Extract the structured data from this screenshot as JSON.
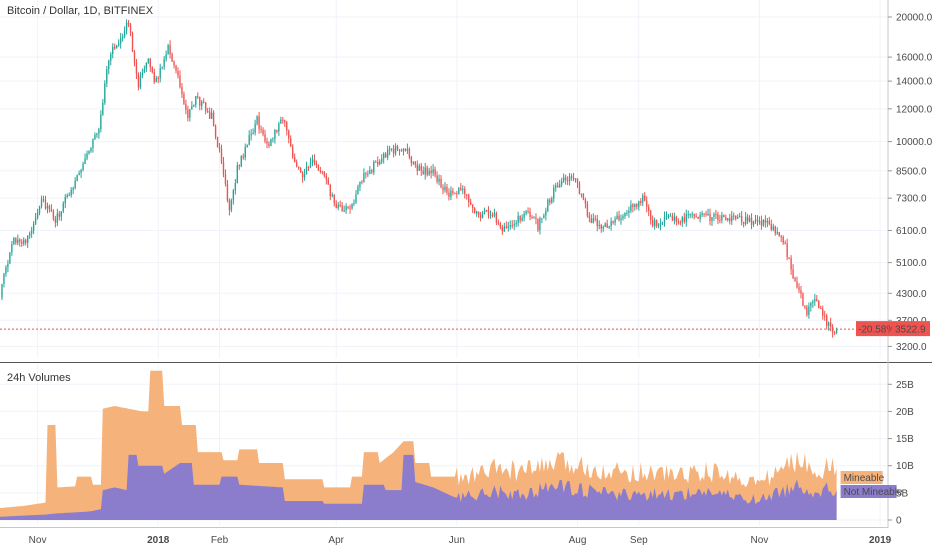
{
  "chart_data": [
    {
      "type": "candlestick",
      "title": "Bitcoin / Dollar, 1D, BITFINEX",
      "y_scale": "log",
      "ylim": [
        3000,
        21500
      ],
      "y_ticks": [
        3200,
        3700,
        4300,
        5100,
        6100,
        7300,
        8500,
        10000,
        12000,
        14000,
        16000,
        20000
      ],
      "y_tick_labels": [
        "3200.0",
        "3700.0",
        "4300.0",
        "5100.0",
        "6100.0",
        "7300.0",
        "8500.0",
        "10000.0",
        "12000.0",
        "14000.0",
        "16000.0",
        "20000.0"
      ],
      "x_range": [
        "2017-10-13",
        "2019-01-05"
      ],
      "x_ticks": [
        {
          "date": "2017-11-01",
          "label": "Nov",
          "bold": false
        },
        {
          "date": "2018-01-01",
          "label": "2018",
          "bold": true
        },
        {
          "date": "2018-02-01",
          "label": "Feb",
          "bold": false
        },
        {
          "date": "2018-04-01",
          "label": "Apr",
          "bold": false
        },
        {
          "date": "2018-06-01",
          "label": "Jun",
          "bold": false
        },
        {
          "date": "2018-08-01",
          "label": "Aug",
          "bold": false
        },
        {
          "date": "2018-09-01",
          "label": "Sep",
          "bold": false
        },
        {
          "date": "2018-11-01",
          "label": "Nov",
          "bold": false
        },
        {
          "date": "2019-01-01",
          "label": "2019",
          "bold": true
        }
      ],
      "key_points": [
        [
          "2017-10-13",
          4300
        ],
        [
          "2017-10-20",
          5800
        ],
        [
          "2017-10-27",
          5800
        ],
        [
          "2017-11-03",
          7300
        ],
        [
          "2017-11-10",
          6400
        ],
        [
          "2017-11-18",
          7700
        ],
        [
          "2017-11-26",
          9300
        ],
        [
          "2017-12-02",
          10800
        ],
        [
          "2017-12-07",
          16000
        ],
        [
          "2017-12-11",
          17200
        ],
        [
          "2017-12-17",
          19300
        ],
        [
          "2017-12-22",
          13800
        ],
        [
          "2017-12-27",
          15500
        ],
        [
          "2017-12-31",
          13900
        ],
        [
          "2018-01-06",
          17100
        ],
        [
          "2018-01-12",
          13600
        ],
        [
          "2018-01-16",
          11300
        ],
        [
          "2018-01-20",
          12800
        ],
        [
          "2018-01-28",
          11500
        ],
        [
          "2018-02-02",
          8900
        ],
        [
          "2018-02-06",
          6900
        ],
        [
          "2018-02-10",
          8600
        ],
        [
          "2018-02-20",
          11300
        ],
        [
          "2018-02-25",
          9700
        ],
        [
          "2018-03-05",
          11500
        ],
        [
          "2018-03-10",
          9300
        ],
        [
          "2018-03-15",
          8300
        ],
        [
          "2018-03-20",
          8900
        ],
        [
          "2018-03-25",
          8400
        ],
        [
          "2018-04-01",
          6900
        ],
        [
          "2018-04-07",
          6800
        ],
        [
          "2018-04-15",
          8200
        ],
        [
          "2018-04-25",
          9300
        ],
        [
          "2018-05-05",
          9700
        ],
        [
          "2018-05-12",
          8600
        ],
        [
          "2018-05-20",
          8400
        ],
        [
          "2018-05-28",
          7400
        ],
        [
          "2018-06-04",
          7600
        ],
        [
          "2018-06-11",
          6700
        ],
        [
          "2018-06-19",
          6700
        ],
        [
          "2018-06-24",
          6200
        ],
        [
          "2018-06-30",
          6400
        ],
        [
          "2018-07-08",
          6700
        ],
        [
          "2018-07-12",
          6250
        ],
        [
          "2018-07-18",
          7300
        ],
        [
          "2018-07-24",
          8200
        ],
        [
          "2018-07-30",
          8200
        ],
        [
          "2018-08-08",
          6400
        ],
        [
          "2018-08-14",
          6250
        ],
        [
          "2018-08-22",
          6500
        ],
        [
          "2018-08-30",
          7000
        ],
        [
          "2018-09-04",
          7300
        ],
        [
          "2018-09-08",
          6400
        ],
        [
          "2018-09-20",
          6500
        ],
        [
          "2018-09-30",
          6600
        ],
        [
          "2018-10-10",
          6550
        ],
        [
          "2018-10-15",
          6500
        ],
        [
          "2018-10-25",
          6450
        ],
        [
          "2018-11-05",
          6400
        ],
        [
          "2018-11-14",
          5600
        ],
        [
          "2018-11-20",
          4400
        ],
        [
          "2018-11-25",
          3900
        ],
        [
          "2018-11-29",
          4200
        ],
        [
          "2018-12-03",
          3800
        ],
        [
          "2018-12-08",
          3500
        ],
        [
          "2018-12-10",
          3522.9
        ]
      ],
      "last_price": "3522.9",
      "last_change": "-20.58%",
      "colors": {
        "up": "#26a69a",
        "down": "#ef5350",
        "price_line": "#ef5350"
      }
    },
    {
      "type": "area",
      "title": "24h Volumes",
      "ylim": [
        0,
        28
      ],
      "y_ticks": [
        0,
        5,
        10,
        15,
        20,
        25
      ],
      "y_tick_labels": [
        "0",
        "5B",
        "10B",
        "15B",
        "20B",
        "25B"
      ],
      "series": [
        {
          "name": "Mineable",
          "color": "#f5b27a",
          "points": [
            [
              "2017-10-13",
              2.2
            ],
            [
              "2017-10-25",
              2.6
            ],
            [
              "2017-11-05",
              3.2
            ],
            [
              "2017-11-06",
              17.5
            ],
            [
              "2017-11-10",
              17.5
            ],
            [
              "2017-11-11",
              6.0
            ],
            [
              "2017-11-20",
              6.2
            ],
            [
              "2017-11-21",
              8.0
            ],
            [
              "2017-11-28",
              8.0
            ],
            [
              "2017-11-29",
              6.5
            ],
            [
              "2017-12-03",
              6.5
            ],
            [
              "2017-12-04",
              20.5
            ],
            [
              "2017-12-10",
              21.0
            ],
            [
              "2017-12-17",
              20.5
            ],
            [
              "2017-12-24",
              20.0
            ],
            [
              "2017-12-27",
              20.0
            ],
            [
              "2017-12-28",
              27.5
            ],
            [
              "2018-01-03",
              27.5
            ],
            [
              "2018-01-04",
              21.0
            ],
            [
              "2018-01-12",
              21.0
            ],
            [
              "2018-01-13",
              17.5
            ],
            [
              "2018-01-20",
              17.5
            ],
            [
              "2018-01-21",
              12.5
            ],
            [
              "2018-02-02",
              12.5
            ],
            [
              "2018-02-03",
              11.0
            ],
            [
              "2018-02-10",
              11.0
            ],
            [
              "2018-02-11",
              13.0
            ],
            [
              "2018-02-20",
              13.0
            ],
            [
              "2018-02-21",
              10.5
            ],
            [
              "2018-03-05",
              10.5
            ],
            [
              "2018-03-06",
              7.5
            ],
            [
              "2018-03-25",
              7.5
            ],
            [
              "2018-03-26",
              6.0
            ],
            [
              "2018-04-08",
              6.0
            ],
            [
              "2018-04-09",
              8.0
            ],
            [
              "2018-04-14",
              8.0
            ],
            [
              "2018-04-15",
              12.5
            ],
            [
              "2018-04-22",
              12.5
            ],
            [
              "2018-04-23",
              10.5
            ],
            [
              "2018-04-30",
              12.5
            ],
            [
              "2018-05-05",
              14.5
            ],
            [
              "2018-05-10",
              14.5
            ],
            [
              "2018-05-11",
              10.5
            ],
            [
              "2018-05-18",
              10.5
            ],
            [
              "2018-05-19",
              8.0
            ],
            [
              "2018-06-01",
              8.0
            ],
            [
              "2018-06-02",
              7.0
            ],
            [
              "2018-06-20",
              9.0
            ],
            [
              "2018-07-05",
              8.5
            ],
            [
              "2018-07-20",
              10.0
            ],
            [
              "2018-08-05",
              9.5
            ],
            [
              "2018-08-20",
              8.5
            ],
            [
              "2018-09-05",
              8.5
            ],
            [
              "2018-09-20",
              8.0
            ],
            [
              "2018-10-05",
              8.5
            ],
            [
              "2018-10-20",
              7.5
            ],
            [
              "2018-11-01",
              6.5
            ],
            [
              "2018-11-12",
              9.0
            ],
            [
              "2018-11-20",
              10.5
            ],
            [
              "2018-12-01",
              9.0
            ],
            [
              "2018-12-10",
              9.5
            ]
          ]
        },
        {
          "name": "Not Mineable",
          "color": "#8c7ccc",
          "points": [
            [
              "2017-10-13",
              0.6
            ],
            [
              "2017-11-05",
              1.0
            ],
            [
              "2017-11-10",
              1.2
            ],
            [
              "2017-11-20",
              1.4
            ],
            [
              "2017-11-28",
              1.6
            ],
            [
              "2017-12-03",
              2.0
            ],
            [
              "2017-12-04",
              5.5
            ],
            [
              "2017-12-10",
              6.0
            ],
            [
              "2017-12-16",
              5.5
            ],
            [
              "2017-12-17",
              12.0
            ],
            [
              "2017-12-21",
              12.0
            ],
            [
              "2017-12-22",
              10.0
            ],
            [
              "2018-01-03",
              10.0
            ],
            [
              "2018-01-04",
              8.5
            ],
            [
              "2018-01-12",
              10.5
            ],
            [
              "2018-01-18",
              10.5
            ],
            [
              "2018-01-19",
              6.5
            ],
            [
              "2018-02-01",
              6.5
            ],
            [
              "2018-02-02",
              8.0
            ],
            [
              "2018-02-10",
              8.0
            ],
            [
              "2018-02-11",
              6.5
            ],
            [
              "2018-03-05",
              6.0
            ],
            [
              "2018-03-06",
              3.5
            ],
            [
              "2018-03-25",
              3.5
            ],
            [
              "2018-03-26",
              3.0
            ],
            [
              "2018-04-14",
              3.0
            ],
            [
              "2018-04-15",
              6.5
            ],
            [
              "2018-04-25",
              6.5
            ],
            [
              "2018-04-26",
              5.5
            ],
            [
              "2018-05-04",
              5.5
            ],
            [
              "2018-05-05",
              12.0
            ],
            [
              "2018-05-10",
              12.0
            ],
            [
              "2018-05-11",
              7.0
            ],
            [
              "2018-05-20",
              6.0
            ],
            [
              "2018-06-01",
              4.0
            ],
            [
              "2018-06-20",
              5.0
            ],
            [
              "2018-07-05",
              4.5
            ],
            [
              "2018-07-20",
              6.0
            ],
            [
              "2018-08-05",
              5.0
            ],
            [
              "2018-08-20",
              4.5
            ],
            [
              "2018-09-05",
              4.5
            ],
            [
              "2018-09-20",
              4.5
            ],
            [
              "2018-10-05",
              5.0
            ],
            [
              "2018-10-20",
              4.0
            ],
            [
              "2018-11-01",
              3.5
            ],
            [
              "2018-11-12",
              5.0
            ],
            [
              "2018-11-20",
              6.0
            ],
            [
              "2018-12-01",
              5.0
            ],
            [
              "2018-12-10",
              5.5
            ]
          ]
        }
      ]
    }
  ]
}
